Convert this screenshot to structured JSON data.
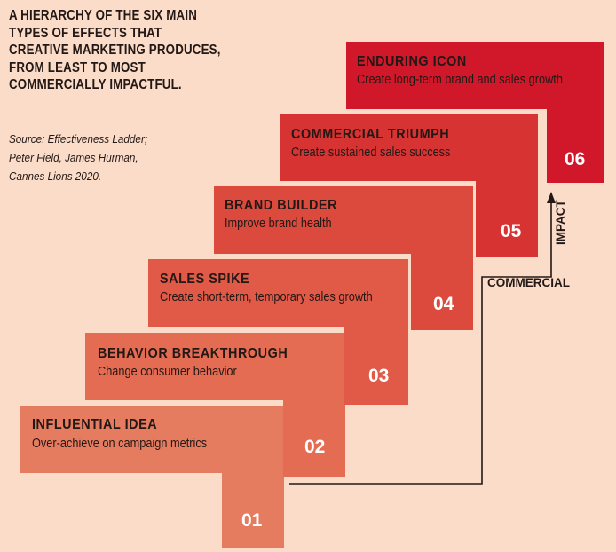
{
  "title": "A HIERARCHY OF THE SIX MAIN TYPES OF EFFECTS THAT CREATIVE MARKETING PRODUCES, FROM LEAST TO MOST COMMERCIALLY IMPACTFUL.",
  "source": "Source: Effectiveness Ladder; Peter Field, James Hurman, Cannes Lions 2020.",
  "steps": [
    {
      "number": "01",
      "heading": "INFLUENTIAL IDEA",
      "description": "Over-achieve on campaign metrics",
      "color": "#e57c60"
    },
    {
      "number": "02",
      "heading": "BEHAVIOR BREAKTHROUGH",
      "description": "Change consumer behavior",
      "color": "#e36c52"
    },
    {
      "number": "03",
      "heading": "SALES SPIKE",
      "description": "Create short-term, temporary sales growth",
      "color": "#e05a47"
    },
    {
      "number": "04",
      "heading": "BRAND BUILDER",
      "description": "Improve brand health",
      "color": "#dc4a3d"
    },
    {
      "number": "05",
      "heading": "COMMERCIAL TRIUMPH",
      "description": "Create sustained sales success",
      "color": "#d73333"
    },
    {
      "number": "06",
      "heading": "ENDURING ICON",
      "description": "Create long-term brand and sales growth",
      "color": "#d0182a"
    }
  ],
  "axis": {
    "label_horizontal": "COMMERCIAL",
    "label_vertical": "IMPACT",
    "color": "#231815"
  }
}
